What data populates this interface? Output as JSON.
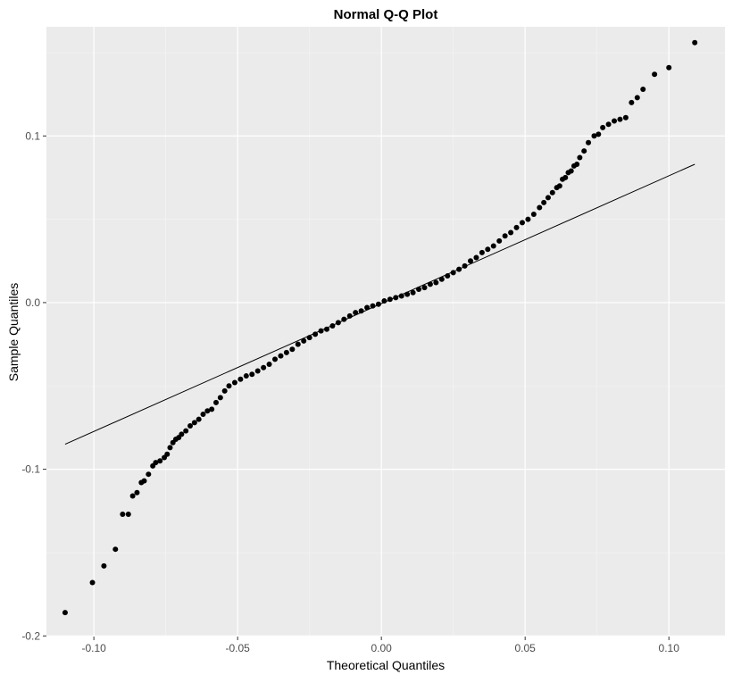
{
  "chart_data": {
    "type": "scatter",
    "title": "Normal Q-Q Plot",
    "xlabel": "Theoretical Quantiles",
    "ylabel": "Sample Quantiles",
    "xlim": [
      -0.1165,
      0.1195
    ],
    "ylim": [
      -0.2004,
      0.1655
    ],
    "x_major_ticks": [
      -0.1,
      -0.05,
      0.0,
      0.05,
      0.1
    ],
    "x_tick_labels": [
      "-0.10",
      "-0.05",
      "0.00",
      "0.05",
      "0.10"
    ],
    "x_minor_ticks": [
      -0.075,
      -0.025,
      0.025,
      0.075
    ],
    "y_major_ticks": [
      -0.2,
      -0.1,
      0.0,
      0.1
    ],
    "y_tick_labels": [
      "-0.2",
      "-0.1",
      "0.0",
      "0.1"
    ],
    "y_minor_ticks": [
      -0.15,
      -0.05,
      0.05,
      0.15
    ],
    "grid": true,
    "reference_line": {
      "x": [
        -0.11,
        0.109
      ],
      "y": [
        -0.085,
        0.083
      ]
    },
    "series": [
      {
        "points": [
          [
            -0.11,
            -0.186
          ],
          [
            -0.1005,
            -0.168
          ],
          [
            -0.0965,
            -0.158
          ],
          [
            -0.0925,
            -0.148
          ],
          [
            -0.09,
            -0.127
          ],
          [
            -0.088,
            -0.127
          ],
          [
            -0.0865,
            -0.116
          ],
          [
            -0.085,
            -0.114
          ],
          [
            -0.0835,
            -0.108
          ],
          [
            -0.0825,
            -0.107
          ],
          [
            -0.081,
            -0.103
          ],
          [
            -0.0795,
            -0.098
          ],
          [
            -0.0785,
            -0.096
          ],
          [
            -0.077,
            -0.095
          ],
          [
            -0.0755,
            -0.093
          ],
          [
            -0.0745,
            -0.091
          ],
          [
            -0.0735,
            -0.087
          ],
          [
            -0.0725,
            -0.084
          ],
          [
            -0.0715,
            -0.082
          ],
          [
            -0.0705,
            -0.081
          ],
          [
            -0.0695,
            -0.079
          ],
          [
            -0.068,
            -0.077
          ],
          [
            -0.0665,
            -0.074
          ],
          [
            -0.065,
            -0.072
          ],
          [
            -0.0635,
            -0.07
          ],
          [
            -0.062,
            -0.067
          ],
          [
            -0.0605,
            -0.065
          ],
          [
            -0.059,
            -0.064
          ],
          [
            -0.0575,
            -0.06
          ],
          [
            -0.056,
            -0.057
          ],
          [
            -0.0545,
            -0.053
          ],
          [
            -0.053,
            -0.05
          ],
          [
            -0.051,
            -0.048
          ],
          [
            -0.049,
            -0.046
          ],
          [
            -0.047,
            -0.044
          ],
          [
            -0.045,
            -0.043
          ],
          [
            -0.043,
            -0.041
          ],
          [
            -0.041,
            -0.039
          ],
          [
            -0.039,
            -0.037
          ],
          [
            -0.037,
            -0.034
          ],
          [
            -0.035,
            -0.032
          ],
          [
            -0.033,
            -0.03
          ],
          [
            -0.031,
            -0.028
          ],
          [
            -0.029,
            -0.025
          ],
          [
            -0.027,
            -0.023
          ],
          [
            -0.025,
            -0.021
          ],
          [
            -0.023,
            -0.019
          ],
          [
            -0.021,
            -0.017
          ],
          [
            -0.019,
            -0.016
          ],
          [
            -0.017,
            -0.014
          ],
          [
            -0.015,
            -0.012
          ],
          [
            -0.013,
            -0.01
          ],
          [
            -0.011,
            -0.008
          ],
          [
            -0.009,
            -0.006
          ],
          [
            -0.007,
            -0.005
          ],
          [
            -0.005,
            -0.003
          ],
          [
            -0.003,
            -0.002
          ],
          [
            -0.001,
            -0.001
          ],
          [
            0.001,
            0.001
          ],
          [
            0.003,
            0.002
          ],
          [
            0.005,
            0.003
          ],
          [
            0.007,
            0.004
          ],
          [
            0.009,
            0.005
          ],
          [
            0.011,
            0.006
          ],
          [
            0.013,
            0.008
          ],
          [
            0.015,
            0.009
          ],
          [
            0.017,
            0.011
          ],
          [
            0.019,
            0.012
          ],
          [
            0.021,
            0.014
          ],
          [
            0.023,
            0.016
          ],
          [
            0.025,
            0.018
          ],
          [
            0.027,
            0.02
          ],
          [
            0.029,
            0.022
          ],
          [
            0.031,
            0.025
          ],
          [
            0.033,
            0.027
          ],
          [
            0.035,
            0.03
          ],
          [
            0.037,
            0.032
          ],
          [
            0.039,
            0.034
          ],
          [
            0.041,
            0.037
          ],
          [
            0.043,
            0.04
          ],
          [
            0.045,
            0.042
          ],
          [
            0.047,
            0.045
          ],
          [
            0.049,
            0.048
          ],
          [
            0.051,
            0.05
          ],
          [
            0.053,
            0.053
          ],
          [
            0.055,
            0.057
          ],
          [
            0.0565,
            0.06
          ],
          [
            0.058,
            0.063
          ],
          [
            0.0595,
            0.066
          ],
          [
            0.061,
            0.069
          ],
          [
            0.062,
            0.07
          ],
          [
            0.063,
            0.074
          ],
          [
            0.064,
            0.075
          ],
          [
            0.065,
            0.078
          ],
          [
            0.066,
            0.079
          ],
          [
            0.067,
            0.082
          ],
          [
            0.068,
            0.083
          ],
          [
            0.069,
            0.087
          ],
          [
            0.0705,
            0.091
          ],
          [
            0.072,
            0.096
          ],
          [
            0.074,
            0.1
          ],
          [
            0.0755,
            0.101
          ],
          [
            0.077,
            0.105
          ],
          [
            0.079,
            0.107
          ],
          [
            0.081,
            0.109
          ],
          [
            0.083,
            0.11
          ],
          [
            0.085,
            0.111
          ],
          [
            0.087,
            0.12
          ],
          [
            0.089,
            0.123
          ],
          [
            0.091,
            0.128
          ],
          [
            0.095,
            0.137
          ],
          [
            0.1,
            0.141
          ],
          [
            0.109,
            0.156
          ]
        ]
      }
    ]
  }
}
